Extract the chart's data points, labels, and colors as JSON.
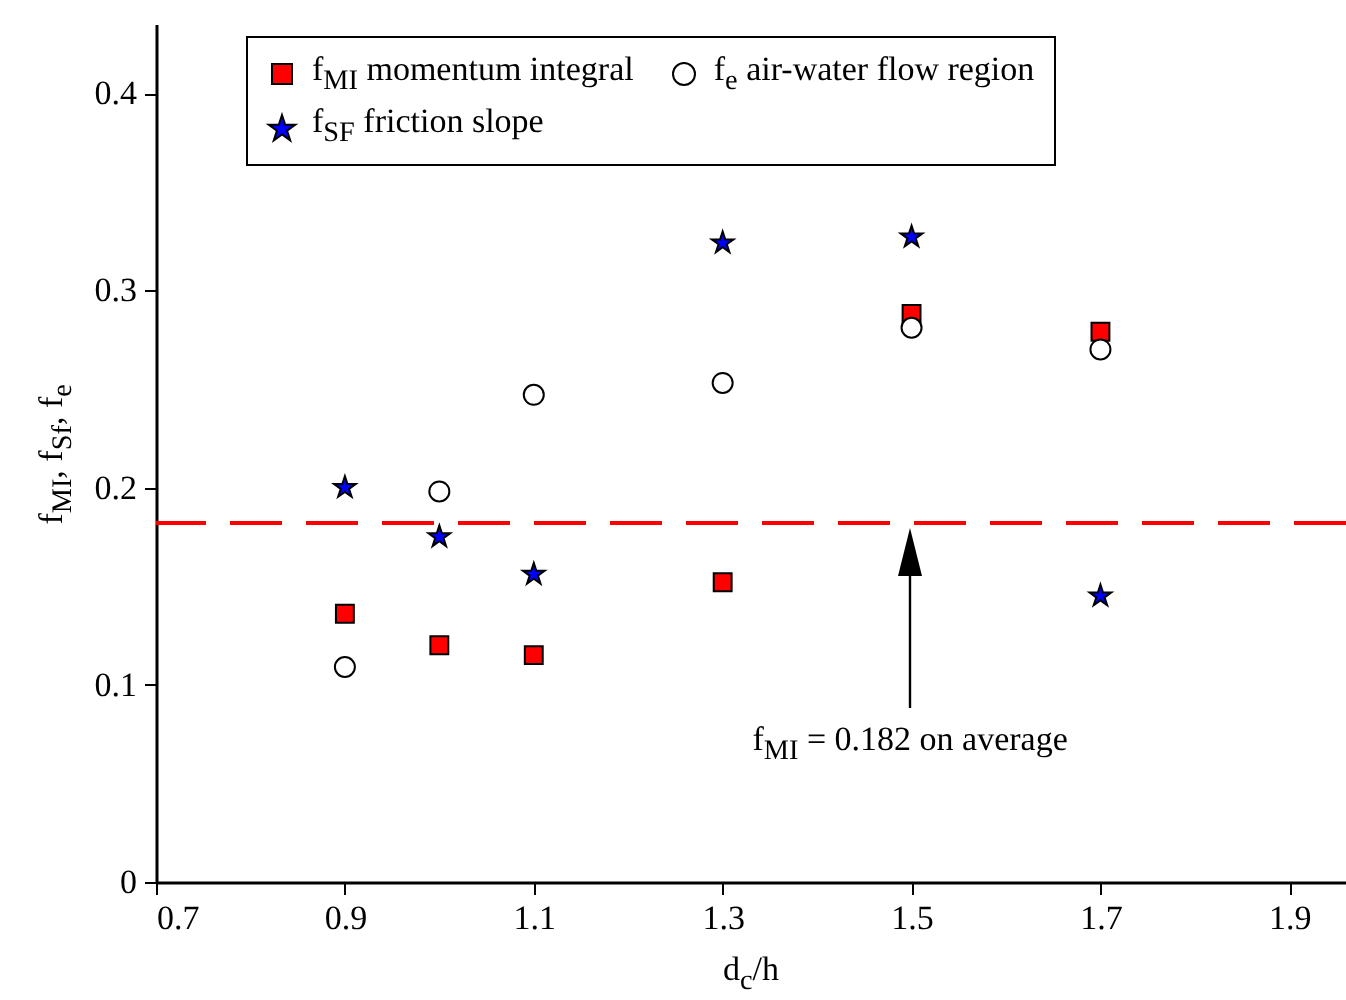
{
  "chart_data": {
    "type": "scatter",
    "xlabel": "d$_{c}$/h",
    "ylabel": "f$_{MI}$, f$_{Sf}$, f$_{e}$",
    "x": [
      0.9,
      1.0,
      1.1,
      1.3,
      1.5,
      1.7
    ],
    "series": [
      {
        "name": "f$_{MI}$ momentum integral",
        "color": "#ff0000",
        "marker": "square",
        "values": [
          0.136,
          0.12,
          0.115,
          0.152,
          0.288,
          0.279
        ]
      },
      {
        "name": "f$_{e}$ air-water flow region",
        "color": "#ffffff",
        "marker": "circle",
        "values": [
          0.109,
          0.198,
          0.247,
          0.253,
          0.281,
          0.27
        ]
      },
      {
        "name": "f$_{SF}$ friction slope",
        "color": "#0000ff",
        "marker": "star",
        "values": [
          0.2,
          0.175,
          0.156,
          0.324,
          0.327,
          0.145
        ]
      }
    ],
    "xlim": [
      0.7,
      1.96
    ],
    "ylim": [
      0,
      0.435
    ],
    "xticks": [
      0.7,
      0.9,
      1.1,
      1.3,
      1.5,
      1.7,
      1.9
    ],
    "yticks": [
      0,
      0.1,
      0.2,
      0.3,
      0.4
    ],
    "ref_lines": [
      {
        "axis": "y",
        "value": 0.182,
        "color": "#ff0000",
        "line_style": "dashed"
      }
    ],
    "annotations": [
      "f$_{MI}$ = 0.182 on average"
    ],
    "legend": "top",
    "grid": false
  }
}
